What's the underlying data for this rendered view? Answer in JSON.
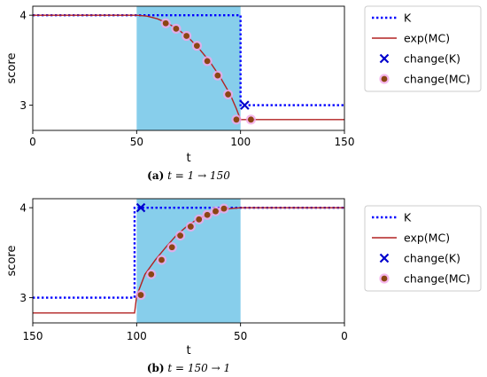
{
  "chart_data": [
    {
      "type": "line",
      "panel": "(a)",
      "caption_label": "(a)",
      "caption_text": "t = 1 → 150",
      "xlabel": "t",
      "ylabel": "score",
      "xlim": [
        0,
        150
      ],
      "ylim": [
        2.72,
        4.1
      ],
      "x_reversed": false,
      "xticks": [
        0,
        50,
        100,
        150
      ],
      "xtick_labels": [
        "0",
        "50",
        "100",
        "150"
      ],
      "yticks": [
        3,
        4
      ],
      "ytick_labels": [
        "3",
        "4"
      ],
      "shaded_region": [
        50,
        100
      ],
      "shade_color": "#87ceeb",
      "grid": false,
      "legend_placement": "outside-right",
      "series": [
        {
          "name": "K",
          "kind": "dotted-line",
          "color": "#0000ff",
          "x": [
            0,
            100,
            100,
            150
          ],
          "y": [
            4,
            4,
            3,
            3
          ]
        },
        {
          "name": "exp(MC)",
          "kind": "line",
          "color": "#b22222",
          "x": [
            0,
            50,
            55,
            60,
            65,
            70,
            75,
            80,
            85,
            90,
            95,
            98,
            100,
            150
          ],
          "y": [
            4,
            4,
            3.99,
            3.96,
            3.91,
            3.84,
            3.75,
            3.63,
            3.49,
            3.32,
            3.12,
            2.96,
            2.84,
            2.84
          ]
        },
        {
          "name": "change(K)",
          "kind": "x-marker",
          "color": "#0000cc",
          "x": [
            102
          ],
          "y": [
            3
          ]
        },
        {
          "name": "change(MC)",
          "kind": "dot-marker",
          "color": "#8b4513",
          "x": [
            64,
            69,
            74,
            79,
            84,
            89,
            94,
            98,
            105
          ],
          "y": [
            3.91,
            3.85,
            3.77,
            3.66,
            3.49,
            3.33,
            3.12,
            2.84,
            2.84
          ]
        }
      ]
    },
    {
      "type": "line",
      "panel": "(b)",
      "caption_label": "(b)",
      "caption_text": "t = 150 → 1",
      "xlabel": "t",
      "ylabel": "score",
      "xlim": [
        150,
        0
      ],
      "ylim": [
        2.72,
        4.1
      ],
      "x_reversed": true,
      "xticks": [
        150,
        100,
        50,
        0
      ],
      "xtick_labels": [
        "150",
        "100",
        "50",
        "0"
      ],
      "yticks": [
        3,
        4
      ],
      "ytick_labels": [
        "3",
        "4"
      ],
      "shaded_region": [
        100,
        50
      ],
      "shade_color": "#87ceeb",
      "grid": false,
      "legend_placement": "outside-right",
      "series": [
        {
          "name": "K",
          "kind": "dotted-line",
          "color": "#0000ff",
          "x": [
            150,
            101,
            101,
            0
          ],
          "y": [
            3,
            3,
            4,
            4
          ]
        },
        {
          "name": "exp(MC)",
          "kind": "line",
          "color": "#b22222",
          "x": [
            150,
            101,
            100,
            96,
            91,
            86,
            81,
            76,
            71,
            66,
            61,
            55,
            50,
            0
          ],
          "y": [
            2.83,
            2.83,
            3.02,
            3.26,
            3.42,
            3.56,
            3.69,
            3.79,
            3.87,
            3.92,
            3.96,
            3.99,
            4,
            4
          ]
        },
        {
          "name": "change(K)",
          "kind": "x-marker",
          "color": "#0000cc",
          "x": [
            98
          ],
          "y": [
            4
          ]
        },
        {
          "name": "change(MC)",
          "kind": "dot-marker",
          "color": "#8b4513",
          "x": [
            98,
            93,
            88,
            83,
            79,
            74,
            70,
            66,
            62,
            58
          ],
          "y": [
            3.03,
            3.26,
            3.42,
            3.56,
            3.69,
            3.79,
            3.87,
            3.92,
            3.96,
            3.99
          ]
        }
      ]
    }
  ]
}
